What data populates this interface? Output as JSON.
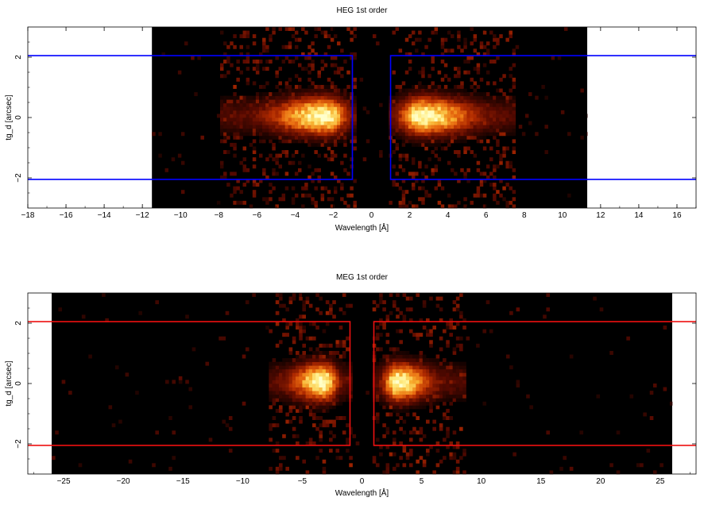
{
  "chart_data": [
    {
      "type": "heatmap",
      "title": "HEG 1st order",
      "xlabel": "Wavelength [Å]",
      "ylabel": "tg_d [arcsec]",
      "xlim": [
        -18,
        17
      ],
      "ylim": [
        -3,
        3
      ],
      "xticks": [
        -18,
        -16,
        -14,
        -12,
        -10,
        -8,
        -6,
        -4,
        -2,
        0,
        2,
        4,
        6,
        8,
        10,
        12,
        14,
        16
      ],
      "yticks": [
        -2,
        0,
        2
      ],
      "data_extent": {
        "x": [
          -11.5,
          11.3
        ],
        "y": [
          -3,
          3
        ]
      },
      "colormap": [
        "#000000",
        "#5a0a00",
        "#b02a00",
        "#e86a10",
        "#f8b030",
        "#ffeb80",
        "#ffffcc"
      ],
      "emission_peaks": [
        {
          "x_range": [
            -8,
            -0.8
          ],
          "peak_x": -2.5,
          "y_center": 0,
          "peak_intensity": 1.0
        },
        {
          "x_range": [
            0.8,
            7.5
          ],
          "peak_x": 2.5,
          "y_center": 0,
          "peak_intensity": 1.0
        }
      ],
      "regions": [
        {
          "x": [
            -18,
            -1
          ],
          "y": [
            -2.05,
            2.05
          ],
          "color": "#0000ff"
        },
        {
          "x": [
            1,
            17
          ],
          "y": [
            -2.05,
            2.05
          ],
          "color": "#0000ff"
        }
      ]
    },
    {
      "type": "heatmap",
      "title": "MEG 1st order",
      "xlabel": "Wavelength [Å]",
      "ylabel": "tg_d [arcsec]",
      "xlim": [
        -28,
        28
      ],
      "ylim": [
        -3,
        3
      ],
      "xticks": [
        -25,
        -20,
        -15,
        -10,
        -5,
        0,
        5,
        10,
        15,
        20,
        25
      ],
      "yticks": [
        -2,
        0,
        2
      ],
      "data_extent": {
        "x": [
          -26,
          26
        ],
        "y": [
          -3,
          3
        ]
      },
      "colormap": [
        "#000000",
        "#5a0a00",
        "#b02a00",
        "#e86a10",
        "#f8b030",
        "#ffeb80",
        "#ffffcc"
      ],
      "emission_peaks": [
        {
          "x_range": [
            -8,
            -0.8
          ],
          "peak_x": -3.3,
          "y_center": 0,
          "peak_intensity": 1.0
        },
        {
          "x_range": [
            0.8,
            8.5
          ],
          "peak_x": 2.8,
          "y_center": 0,
          "peak_intensity": 1.0
        }
      ],
      "regions": [
        {
          "x": [
            -28,
            -1
          ],
          "y": [
            -2.05,
            2.05
          ],
          "color": "#ee1111"
        },
        {
          "x": [
            1,
            28
          ],
          "y": [
            -2.05,
            2.05
          ],
          "color": "#ee1111"
        }
      ]
    }
  ]
}
